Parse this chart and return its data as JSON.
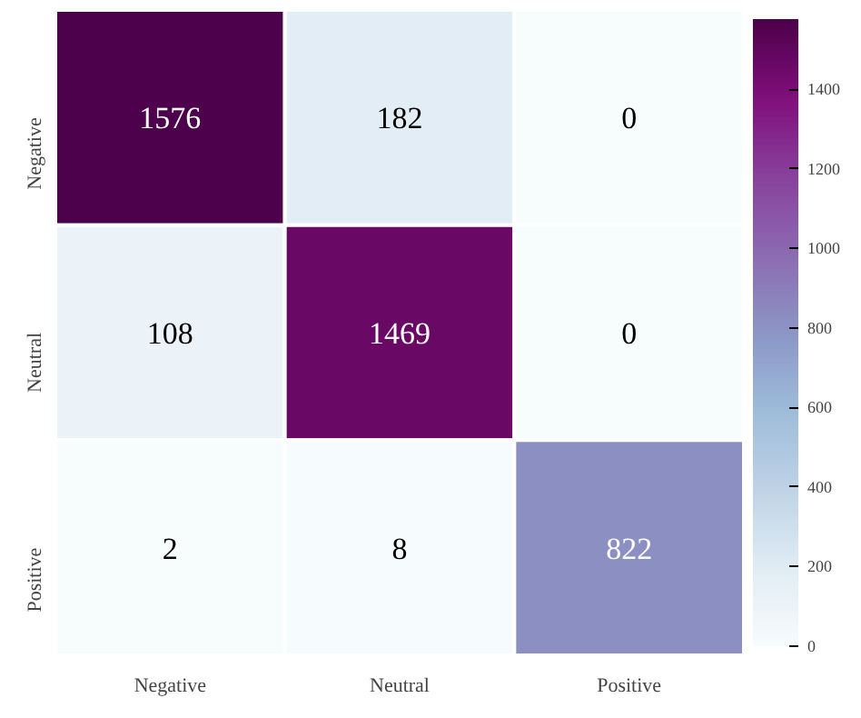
{
  "chart_data": {
    "type": "heatmap",
    "categories": [
      "Negative",
      "Neutral",
      "Positive"
    ],
    "y_categories": [
      "Negative",
      "Neutral",
      "Positive"
    ],
    "cells": [
      [
        1576,
        182,
        0
      ],
      [
        108,
        1469,
        0
      ],
      [
        2,
        8,
        822
      ]
    ],
    "clim": [
      0,
      1576
    ],
    "cticks": [
      0,
      200,
      400,
      600,
      800,
      1000,
      1200,
      1400
    ],
    "data_labels": true
  }
}
